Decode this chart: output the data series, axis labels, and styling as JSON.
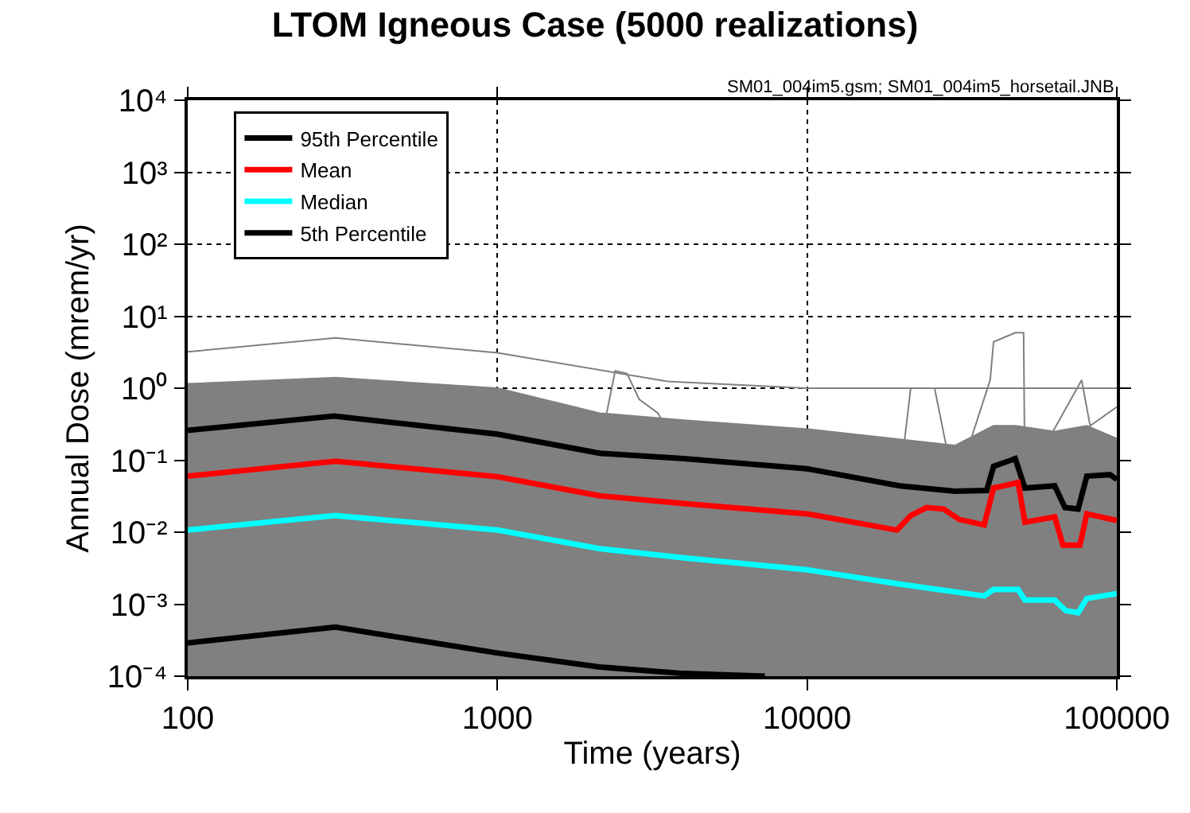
{
  "chart_data": {
    "type": "line",
    "title": "LTOM Igneous Case (5000 realizations)",
    "xlabel": "Time (years)",
    "ylabel": "Annual Dose (mrem/yr)",
    "annotations": [
      "SM01_004im5.gsm; SM01_004im5_horsetail.JNB"
    ],
    "log": "xy",
    "grid": true,
    "legend": "top left",
    "line_style": "solid",
    "marker": "none",
    "xlim": [
      100,
      100000
    ],
    "xticks": [
      100,
      1000,
      10000,
      100000
    ],
    "ylim": [
      0.0001,
      10000
    ],
    "yticks": [
      {
        "value": 0.0001,
        "label": "10⁻⁴"
      },
      {
        "value": 0.001,
        "label": "10⁻³"
      },
      {
        "value": 0.01,
        "label": "10⁻²"
      },
      {
        "value": 0.1,
        "label": "10⁻¹"
      },
      {
        "value": 1,
        "label": "10⁰"
      },
      {
        "value": 10,
        "label": "10¹"
      },
      {
        "value": 100,
        "label": "10²"
      },
      {
        "value": 1000,
        "label": "10³"
      },
      {
        "value": 10000,
        "label": "10⁴"
      }
    ],
    "series": [
      {
        "type": "area",
        "color": "#808080",
        "x": [
          100,
          300,
          1000,
          2140,
          4000,
          10000,
          30000,
          40000,
          47000,
          63000,
          80000,
          100000
        ],
        "values": [
          1.15,
          1.4,
          1.0,
          0.45,
          0.36,
          0.27,
          0.16,
          0.3,
          0.3,
          0.25,
          0.3,
          0.2
        ]
      },
      {
        "type": "line",
        "color": "#808080",
        "x": [
          100,
          300,
          1000,
          3550,
          10000,
          100000
        ],
        "values": [
          3.2,
          5.0,
          3.1,
          1.24,
          1.0,
          1.0
        ]
      },
      {
        "type": "line",
        "color": "#808080",
        "x": [
          19900,
          21600,
          25800,
          30000,
          39000,
          40000,
          47000,
          50000,
          50500,
          77000,
          82000,
          100000
        ],
        "values": [
          0.05,
          1.0,
          1.0,
          0.04,
          1.3,
          4.4,
          5.9,
          5.9,
          0.05,
          1.3,
          0.3,
          0.55
        ]
      },
      {
        "type": "line",
        "color": "#808080",
        "x": [
          2140,
          2400,
          2620,
          2870,
          3300,
          3950
        ],
        "values": [
          0.15,
          1.74,
          1.6,
          0.7,
          0.45,
          0.11
        ]
      },
      {
        "name": "95th Percentile",
        "color": "#000000",
        "x": [
          100,
          297,
          1000,
          2140,
          4000,
          10000,
          19900,
          30000,
          38000,
          40000,
          47000,
          50500,
          63000,
          68000,
          75000,
          80000,
          95000,
          100000
        ],
        "values": [
          0.26,
          0.41,
          0.23,
          0.125,
          0.105,
          0.076,
          0.044,
          0.037,
          0.038,
          0.082,
          0.105,
          0.041,
          0.044,
          0.022,
          0.021,
          0.06,
          0.063,
          0.054
        ]
      },
      {
        "name": "Mean",
        "color": "#ff0000",
        "x": [
          100,
          300,
          1000,
          2140,
          4000,
          10000,
          19500,
          21600,
          24300,
          27600,
          31000,
          37300,
          40000,
          48000,
          50500,
          63000,
          67000,
          76000,
          80000,
          100000
        ],
        "values": [
          0.06,
          0.097,
          0.059,
          0.032,
          0.025,
          0.018,
          0.0107,
          0.017,
          0.022,
          0.021,
          0.015,
          0.0126,
          0.041,
          0.049,
          0.0138,
          0.0163,
          0.0066,
          0.0066,
          0.018,
          0.0145
        ]
      },
      {
        "name": "Median",
        "color": "#00ffff",
        "x": [
          100,
          300,
          1000,
          2140,
          4000,
          10000,
          19900,
          37300,
          40000,
          48000,
          50500,
          63000,
          68500,
          75000,
          80000,
          100000
        ],
        "values": [
          0.0107,
          0.017,
          0.0107,
          0.0059,
          0.0044,
          0.003,
          0.0019,
          0.0013,
          0.0016,
          0.0016,
          0.00114,
          0.00114,
          0.00081,
          0.00076,
          0.0012,
          0.0014
        ]
      },
      {
        "name": "5th Percentile",
        "color": "#000000",
        "x": [
          100,
          300,
          1000,
          2140,
          4000,
          7300
        ],
        "values": [
          0.00029,
          0.00048,
          0.00021,
          0.000134,
          0.000109,
          0.0001
        ]
      }
    ]
  }
}
